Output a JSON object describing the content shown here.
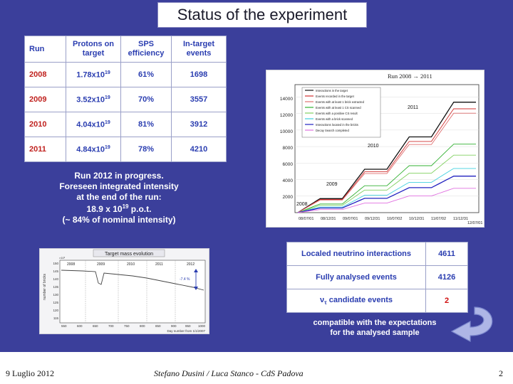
{
  "slide": {
    "title": "Status of the experiment",
    "colors": {
      "background": "#3b3f9b",
      "header_text": "#2a3db0",
      "year_text": "#c0221f",
      "red": "#d01010"
    }
  },
  "run_table": {
    "headers": [
      "Run",
      "Protons on target",
      "SPS efficiency",
      "In-target events"
    ],
    "rows": [
      {
        "run": "2008",
        "pot": "1.78x10",
        "exp": "19",
        "eff": "61%",
        "events": "1698"
      },
      {
        "run": "2009",
        "pot": "3.52x10",
        "exp": "19",
        "eff": "70%",
        "events": "3557"
      },
      {
        "run": "2010",
        "pot": "4.04x10",
        "exp": "19",
        "eff": "81%",
        "events": "3912"
      },
      {
        "run": "2011",
        "pot": "4.84x10",
        "exp": "19",
        "eff": "78%",
        "events": "4210"
      }
    ]
  },
  "run_note": {
    "line1": "Run 2012 in progress.",
    "line2": "Foreseen integrated intensity",
    "line3": "at the end of the run:",
    "line4_pre": "18.9 x 10",
    "line4_exp": "19",
    "line4_post": " p.o.t.",
    "line5": "(~ 84% of nominal intensity)"
  },
  "right_plot": {
    "title": "Run 2008 → 2011",
    "legend": [
      {
        "label": "Interactions in the target",
        "color": "#111111"
      },
      {
        "label": "Events recorded in the target",
        "color": "#d03030"
      },
      {
        "label": "Events with at least 1 brick extracted",
        "color": "#e07070"
      },
      {
        "label": "Events with at least 1 CS scanned",
        "color": "#30b030"
      },
      {
        "label": "Events with a positive CS result",
        "color": "#80d060"
      },
      {
        "label": "Events with a brick scanned",
        "color": "#40d0e0"
      },
      {
        "label": "Interactions located in the bricks",
        "color": "#2020c0"
      },
      {
        "label": "Decay Search completed",
        "color": "#e070e0"
      }
    ],
    "y_ticks": [
      "2000",
      "4000",
      "6000",
      "8000",
      "10000",
      "12000",
      "14000"
    ],
    "x_ticks": [
      "08/07/01",
      "08/12/31",
      "09/07/01",
      "09/12/31",
      "10/07/02",
      "10/12/31",
      "11/07/02",
      "11/12/31",
      "12/07/01"
    ],
    "year_labels": [
      "2008",
      "2009",
      "2010",
      "2011"
    ],
    "series": {
      "interactions_in_target": [
        0,
        1698,
        1698,
        5255,
        5255,
        9167,
        9167,
        13377,
        13377
      ]
    }
  },
  "left_plot": {
    "title": "Target mass evolution",
    "year_labels": [
      "2008",
      "2009",
      "2010",
      "2011",
      "2012"
    ],
    "y_label": "number of bricks",
    "x_label": "Day number from 1/1/2007",
    "annotation": "-7.4 %",
    "y_ticks": [
      "150",
      "145",
      "140",
      "135",
      "130",
      "125",
      "120",
      "115"
    ],
    "x_ticks": [
      "550",
      "600",
      "650",
      "700",
      "750",
      "800",
      "850",
      "900",
      "950",
      "1000"
    ],
    "axis_multiplier": "×10³"
  },
  "location_table": {
    "rows": [
      {
        "label": "Localed neutrino interactions",
        "value": "4611"
      },
      {
        "label": "Fully analysed events",
        "value": "4126"
      },
      {
        "label_sym": "ν",
        "label_sub": "τ",
        "label_rest": " candidate events",
        "value": "2"
      }
    ]
  },
  "compat": {
    "line1": "compatible with the expectations",
    "line2": "for the analysed sample"
  },
  "footer": {
    "date": "9 Luglio 2012",
    "authors": "Stefano Dusini / Luca Stanco - CdS Padova",
    "page": "2"
  }
}
